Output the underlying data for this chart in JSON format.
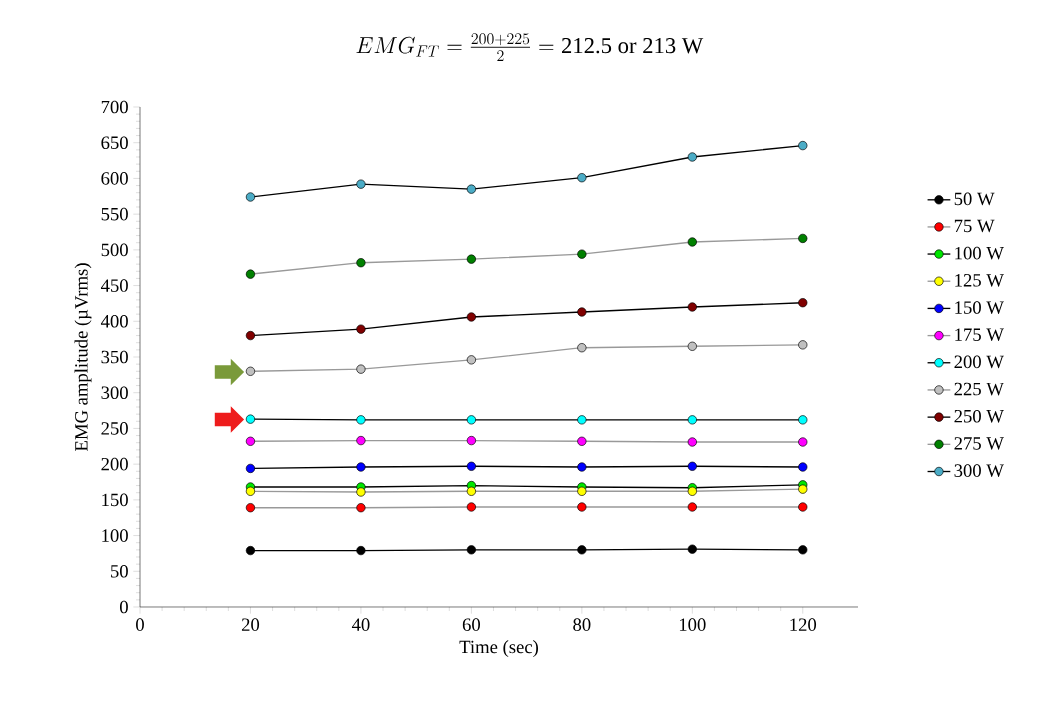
{
  "chart_data": {
    "type": "line",
    "title": "EMG_{FT} = \\frac{200+225}{2} = \\text{212.5 or 213 W}",
    "xlabel": "Time (sec)",
    "ylabel": "EMG amplitude (µVrms)",
    "x": [
      20,
      40,
      60,
      80,
      100,
      120
    ],
    "xlim": [
      0,
      130
    ],
    "xticks": [
      0,
      20,
      40,
      60,
      80,
      100,
      120
    ],
    "ylim": [
      0,
      700
    ],
    "yticks": [
      0,
      50,
      100,
      150,
      200,
      250,
      300,
      350,
      400,
      450,
      500,
      550,
      600,
      650,
      700
    ],
    "marker": "circle",
    "legend": "right",
    "grid": false,
    "series": [
      {
        "name": "50 W",
        "color": "#000000",
        "values": [
          79,
          79,
          80,
          80,
          81,
          80
        ]
      },
      {
        "name": "75 W",
        "color": "#ff0000",
        "values": [
          139,
          139,
          140,
          140,
          140,
          140
        ]
      },
      {
        "name": "100 W",
        "color": "#00e600",
        "values": [
          168,
          168,
          170,
          168,
          167,
          171
        ]
      },
      {
        "name": "125 W",
        "color": "#ffff00",
        "values": [
          162,
          161,
          162,
          162,
          162,
          165
        ]
      },
      {
        "name": "150 W",
        "color": "#0000ff",
        "values": [
          194,
          196,
          197,
          196,
          197,
          196
        ]
      },
      {
        "name": "175 W",
        "color": "#ff00ff",
        "values": [
          232,
          233,
          233,
          232,
          231,
          231
        ]
      },
      {
        "name": "200 W",
        "color": "#00ffff",
        "values": [
          263,
          262,
          262,
          262,
          262,
          262
        ]
      },
      {
        "name": "225 W",
        "color": "#c0c0c0",
        "values": [
          330,
          333,
          346,
          363,
          365,
          367
        ]
      },
      {
        "name": "250 W",
        "color": "#800000",
        "values": [
          380,
          389,
          406,
          413,
          420,
          426
        ]
      },
      {
        "name": "275 W",
        "color": "#008000",
        "values": [
          466,
          482,
          487,
          494,
          511,
          516
        ]
      },
      {
        "name": "300 W",
        "color": "#4bacc6",
        "values": [
          574,
          592,
          585,
          601,
          630,
          646
        ]
      }
    ]
  }
}
